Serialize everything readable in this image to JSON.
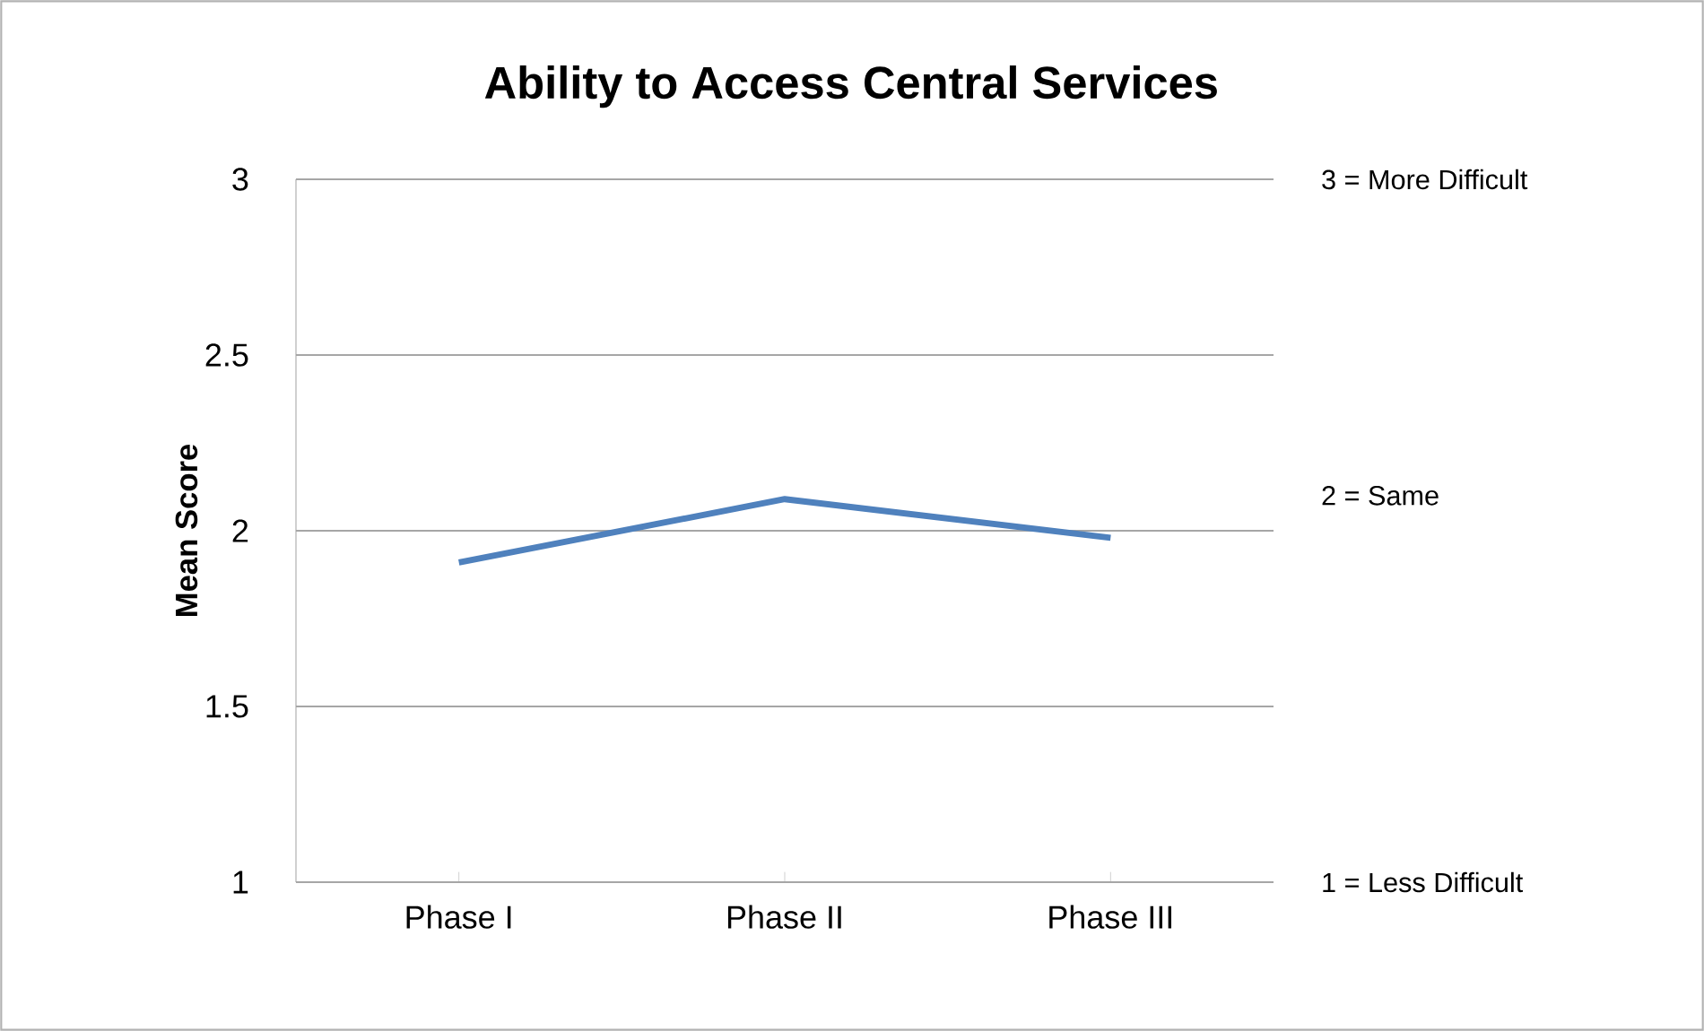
{
  "chart_data": {
    "type": "line",
    "title": "Ability to Access Central Services",
    "ylabel": "Mean Score",
    "categories": [
      "Phase I",
      "Phase II",
      "Phase III"
    ],
    "series": [
      {
        "color": "#4f81bd",
        "values": [
          1.91,
          2.09,
          1.98
        ]
      }
    ],
    "ylim": [
      1,
      3
    ],
    "yticks": [
      1,
      1.5,
      2,
      2.5,
      3
    ],
    "grid": "y",
    "marker": "none",
    "line_style": "solid",
    "annotations": [
      "3 = More Difficult",
      "2 = Same",
      "1 = Less Difficult"
    ]
  }
}
